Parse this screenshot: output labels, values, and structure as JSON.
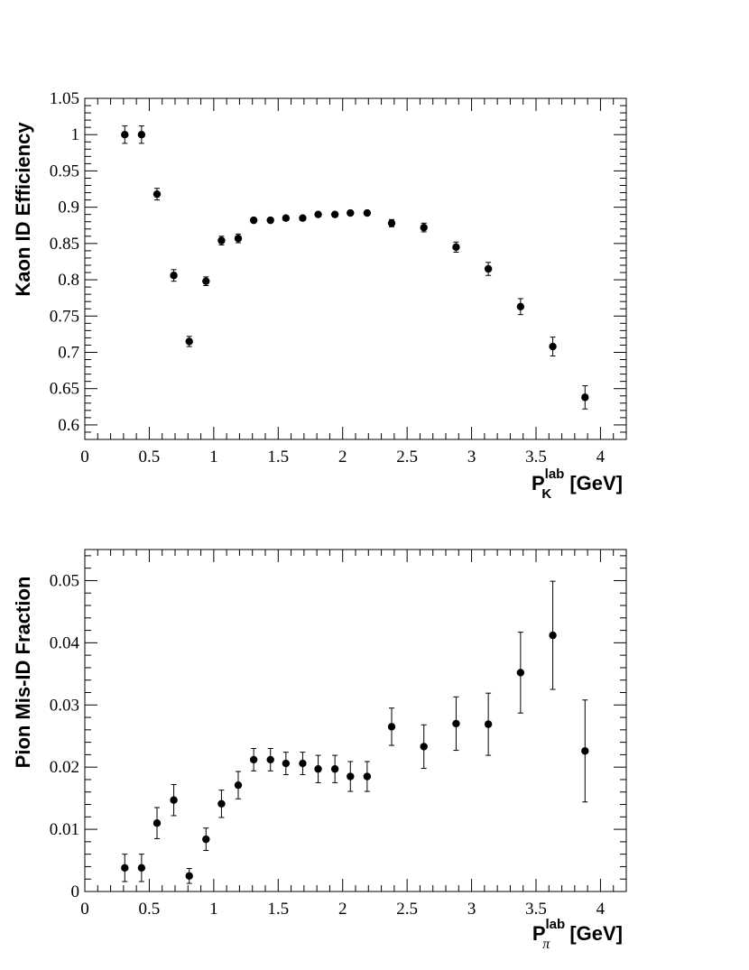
{
  "chart_data": [
    {
      "type": "scatter",
      "title": "",
      "ylabel": "Kaon ID Efficiency",
      "xlabel": {
        "main": "P",
        "sub": "K",
        "sup": "lab",
        "unit": " [GeV]"
      },
      "xlim": [
        0,
        4.2
      ],
      "ylim": [
        0.58,
        1.05
      ],
      "x_ticks": [
        "0",
        "0.5",
        "1",
        "1.5",
        "2",
        "2.5",
        "3",
        "3.5",
        "4"
      ],
      "x_tick_values": [
        0,
        0.5,
        1,
        1.5,
        2,
        2.5,
        3,
        3.5,
        4
      ],
      "y_ticks": [
        "0.6",
        "0.65",
        "0.7",
        "0.75",
        "0.8",
        "0.85",
        "0.9",
        "0.95",
        "1",
        "1.05"
      ],
      "y_tick_values": [
        0.6,
        0.65,
        0.7,
        0.75,
        0.8,
        0.85,
        0.9,
        0.95,
        1.0,
        1.05
      ],
      "grid": false,
      "points": [
        {
          "x": 0.31,
          "y": 1.0,
          "err": 0.012
        },
        {
          "x": 0.44,
          "y": 1.0,
          "err": 0.012
        },
        {
          "x": 0.56,
          "y": 0.918,
          "err": 0.008
        },
        {
          "x": 0.69,
          "y": 0.806,
          "err": 0.008
        },
        {
          "x": 0.81,
          "y": 0.715,
          "err": 0.007
        },
        {
          "x": 0.94,
          "y": 0.798,
          "err": 0.006
        },
        {
          "x": 1.06,
          "y": 0.854,
          "err": 0.006
        },
        {
          "x": 1.19,
          "y": 0.857,
          "err": 0.006
        },
        {
          "x": 1.31,
          "y": 0.882,
          "err": 0.003
        },
        {
          "x": 1.44,
          "y": 0.882,
          "err": 0.003
        },
        {
          "x": 1.56,
          "y": 0.885,
          "err": 0.003
        },
        {
          "x": 1.69,
          "y": 0.885,
          "err": 0.003
        },
        {
          "x": 1.81,
          "y": 0.89,
          "err": 0.003
        },
        {
          "x": 1.94,
          "y": 0.89,
          "err": 0.003
        },
        {
          "x": 2.06,
          "y": 0.892,
          "err": 0.003
        },
        {
          "x": 2.19,
          "y": 0.892,
          "err": 0.003
        },
        {
          "x": 2.38,
          "y": 0.878,
          "err": 0.005
        },
        {
          "x": 2.63,
          "y": 0.872,
          "err": 0.006
        },
        {
          "x": 2.88,
          "y": 0.845,
          "err": 0.007
        },
        {
          "x": 3.13,
          "y": 0.815,
          "err": 0.009
        },
        {
          "x": 3.38,
          "y": 0.763,
          "err": 0.011
        },
        {
          "x": 3.63,
          "y": 0.708,
          "err": 0.013
        },
        {
          "x": 3.88,
          "y": 0.638,
          "err": 0.016
        }
      ]
    },
    {
      "type": "scatter",
      "title": "",
      "ylabel": "Pion Mis-ID Fraction",
      "xlabel": {
        "main": "P",
        "sub": "π",
        "sup": "lab",
        "unit": " [GeV]"
      },
      "xlim": [
        0,
        4.2
      ],
      "ylim": [
        0,
        0.055
      ],
      "x_ticks": [
        "0",
        "0.5",
        "1",
        "1.5",
        "2",
        "2.5",
        "3",
        "3.5",
        "4"
      ],
      "x_tick_values": [
        0,
        0.5,
        1,
        1.5,
        2,
        2.5,
        3,
        3.5,
        4
      ],
      "y_ticks": [
        "0",
        "0.01",
        "0.02",
        "0.03",
        "0.04",
        "0.05"
      ],
      "y_tick_values": [
        0,
        0.01,
        0.02,
        0.03,
        0.04,
        0.05
      ],
      "grid": false,
      "points": [
        {
          "x": 0.31,
          "y": 0.0038,
          "err": 0.0022
        },
        {
          "x": 0.44,
          "y": 0.0038,
          "err": 0.0022
        },
        {
          "x": 0.56,
          "y": 0.011,
          "err": 0.0025
        },
        {
          "x": 0.69,
          "y": 0.0147,
          "err": 0.0025
        },
        {
          "x": 0.81,
          "y": 0.0025,
          "err": 0.0012
        },
        {
          "x": 0.94,
          "y": 0.0084,
          "err": 0.0018
        },
        {
          "x": 1.06,
          "y": 0.0141,
          "err": 0.0022
        },
        {
          "x": 1.19,
          "y": 0.0171,
          "err": 0.0022
        },
        {
          "x": 1.31,
          "y": 0.0212,
          "err": 0.0018
        },
        {
          "x": 1.44,
          "y": 0.0212,
          "err": 0.0018
        },
        {
          "x": 1.56,
          "y": 0.0206,
          "err": 0.0018
        },
        {
          "x": 1.69,
          "y": 0.0206,
          "err": 0.0018
        },
        {
          "x": 1.81,
          "y": 0.0197,
          "err": 0.0022
        },
        {
          "x": 1.94,
          "y": 0.0197,
          "err": 0.0022
        },
        {
          "x": 2.06,
          "y": 0.0185,
          "err": 0.0024
        },
        {
          "x": 2.19,
          "y": 0.0185,
          "err": 0.0024
        },
        {
          "x": 2.38,
          "y": 0.0265,
          "err": 0.003
        },
        {
          "x": 2.63,
          "y": 0.0233,
          "err": 0.0035
        },
        {
          "x": 2.88,
          "y": 0.027,
          "err": 0.0043
        },
        {
          "x": 3.13,
          "y": 0.0269,
          "err": 0.005
        },
        {
          "x": 3.38,
          "y": 0.0352,
          "err": 0.0065
        },
        {
          "x": 3.63,
          "y": 0.0412,
          "err": 0.0087
        },
        {
          "x": 3.88,
          "y": 0.0226,
          "err": 0.0082
        }
      ]
    }
  ],
  "colors": {
    "marker": "#000000",
    "axis": "#000000",
    "background": "#ffffff"
  }
}
